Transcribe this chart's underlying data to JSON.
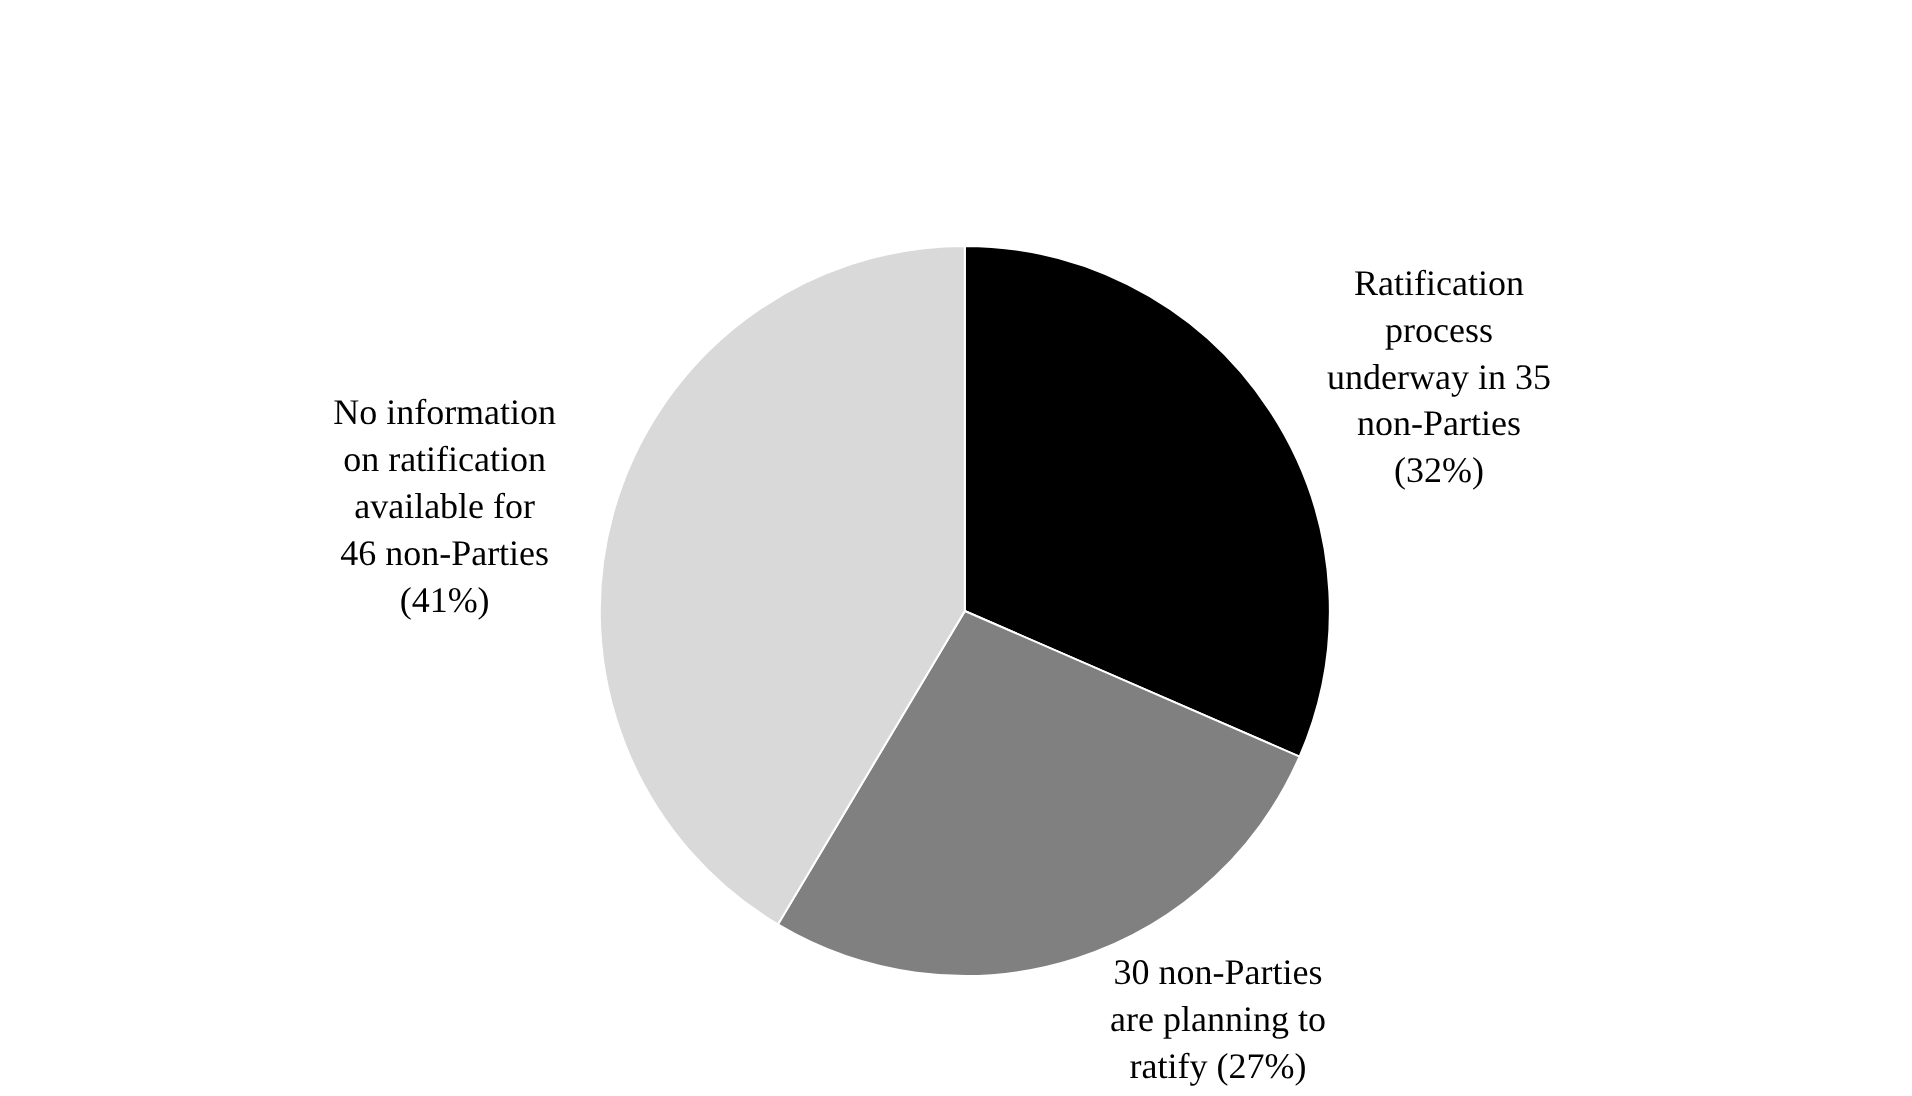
{
  "chart_data": {
    "type": "pie",
    "categories": [
      "Ratification\nprocess\nunderway in 35\nnon-Parties\n(32%)",
      "30 non-Parties\nare planning to\nratify (27%)",
      "No information\non ratification\navailable for\n46 non-Parties\n(41%)"
    ],
    "values": [
      35,
      30,
      46
    ],
    "colors": [
      "#000000",
      "#808080",
      "#d9d9d9"
    ],
    "legend": false
  }
}
